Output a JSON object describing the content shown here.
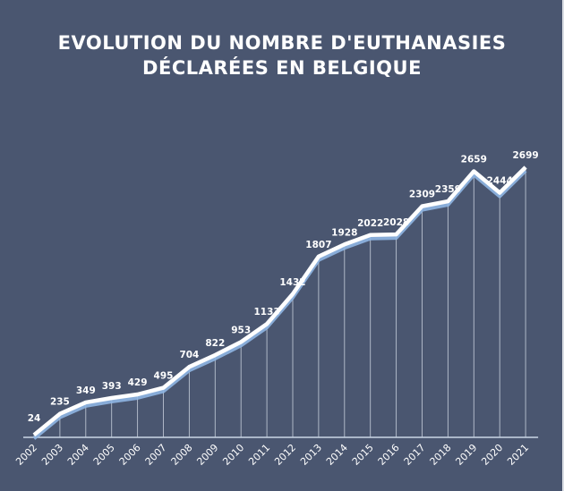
{
  "title_line1": "EVOLUTION DU NOMBRE D'EUTHANASIES",
  "title_line2": "DÉCLARÉES EN BELGIQUE",
  "colors": {
    "background": "#4a5670",
    "line": "#ffffff",
    "line_shadow": "#8fb6e3",
    "text": "#ffffff"
  },
  "chart_data": {
    "type": "line",
    "title": "EVOLUTION DU NOMBRE D'EUTHANASIES DÉCLARÉES EN BELGIQUE",
    "xlabel": "",
    "ylabel": "",
    "categories": [
      "2002",
      "2003",
      "2004",
      "2005",
      "2006",
      "2007",
      "2008",
      "2009",
      "2010",
      "2011",
      "2012",
      "2013",
      "2014",
      "2015",
      "2016",
      "2017",
      "2018",
      "2019",
      "2020",
      "2021"
    ],
    "values": [
      24,
      235,
      349,
      393,
      429,
      495,
      704,
      822,
      953,
      1133,
      1432,
      1807,
      1928,
      2022,
      2028,
      2309,
      2359,
      2659,
      2444,
      2699
    ],
    "data_labels": [
      "24",
      "235",
      "349",
      "393",
      "429",
      "495",
      "704",
      "822",
      "953",
      "1133",
      "1432",
      "1807",
      "1928",
      "2022",
      "2028",
      "2309",
      "2359",
      "2659",
      "2444",
      "2699"
    ],
    "ylim": [
      0,
      2699
    ],
    "grid": false,
    "legend": "none"
  }
}
